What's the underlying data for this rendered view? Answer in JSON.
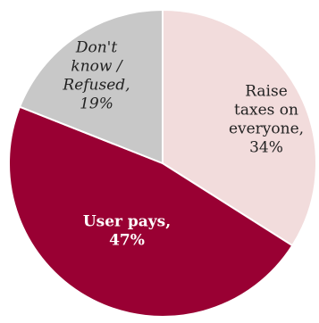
{
  "chart_data": {
    "type": "pie",
    "start_angle_deg": 0,
    "direction": "clockwise",
    "slices": [
      {
        "label": "Raise taxes on everyone",
        "value": 34,
        "color": "#f2dcdc",
        "label_style": "normal",
        "label_lines": [
          "Raise",
          "taxes on",
          "everyone,",
          "34%"
        ]
      },
      {
        "label": "User pays",
        "value": 47,
        "color": "#990033",
        "label_style": "bold",
        "label_lines": [
          "User pays,",
          "47%"
        ]
      },
      {
        "label": "Don't know / Refused",
        "value": 19,
        "color": "#c8c8c8",
        "label_style": "italic",
        "label_lines": [
          "Don't",
          "know /",
          "Refused,",
          "19%"
        ]
      }
    ]
  }
}
